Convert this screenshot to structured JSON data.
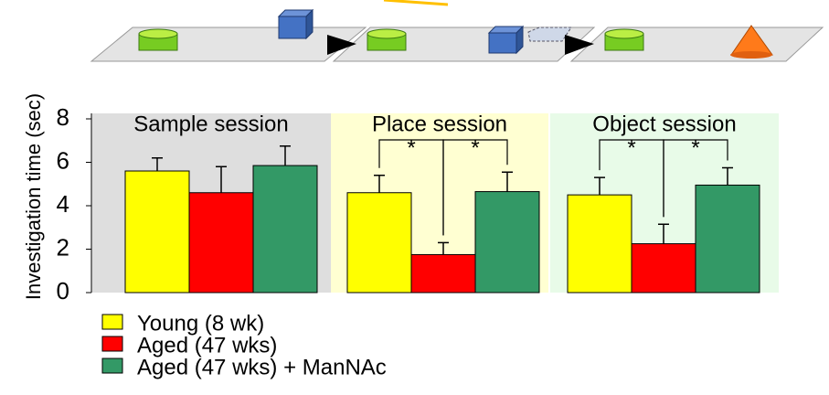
{
  "chart_data": {
    "type": "bar",
    "ylabel": "Investigation time (sec)",
    "categories": [
      "Sample session",
      "Place session",
      "Object session"
    ],
    "category_backgrounds": [
      "#dedede",
      "#ffffd2",
      "#e8fbe8"
    ],
    "series": [
      {
        "name": "Young (8 wk)",
        "color": "#ffff00",
        "values": [
          5.6,
          4.6,
          4.5
        ],
        "errors": [
          0.6,
          0.8,
          0.8
        ]
      },
      {
        "name": "Aged (47 wks)",
        "color": "#ff0000",
        "values": [
          4.6,
          1.75,
          2.25
        ],
        "errors": [
          1.2,
          0.55,
          0.9
        ]
      },
      {
        "name": "Aged (47 wks) + ManNAc",
        "color": "#339966",
        "values": [
          5.85,
          4.65,
          4.95
        ],
        "errors": [
          0.9,
          0.9,
          0.8
        ]
      }
    ],
    "significance": [
      {
        "category": "Place session",
        "pair": [
          "Young (8 wk)",
          "Aged (47 wks)"
        ],
        "label": "*"
      },
      {
        "category": "Place session",
        "pair": [
          "Aged (47 wks)",
          "Aged (47 wks) + ManNAc"
        ],
        "label": "*"
      },
      {
        "category": "Object session",
        "pair": [
          "Young (8 wk)",
          "Aged (47 wks)"
        ],
        "label": "*"
      },
      {
        "category": "Object session",
        "pair": [
          "Aged (47 wks)",
          "Aged (47 wks) + ManNAc"
        ],
        "label": "*"
      }
    ],
    "ylim": [
      0,
      8
    ],
    "yticks": [
      0,
      2,
      4,
      6,
      8
    ],
    "grid": false
  }
}
